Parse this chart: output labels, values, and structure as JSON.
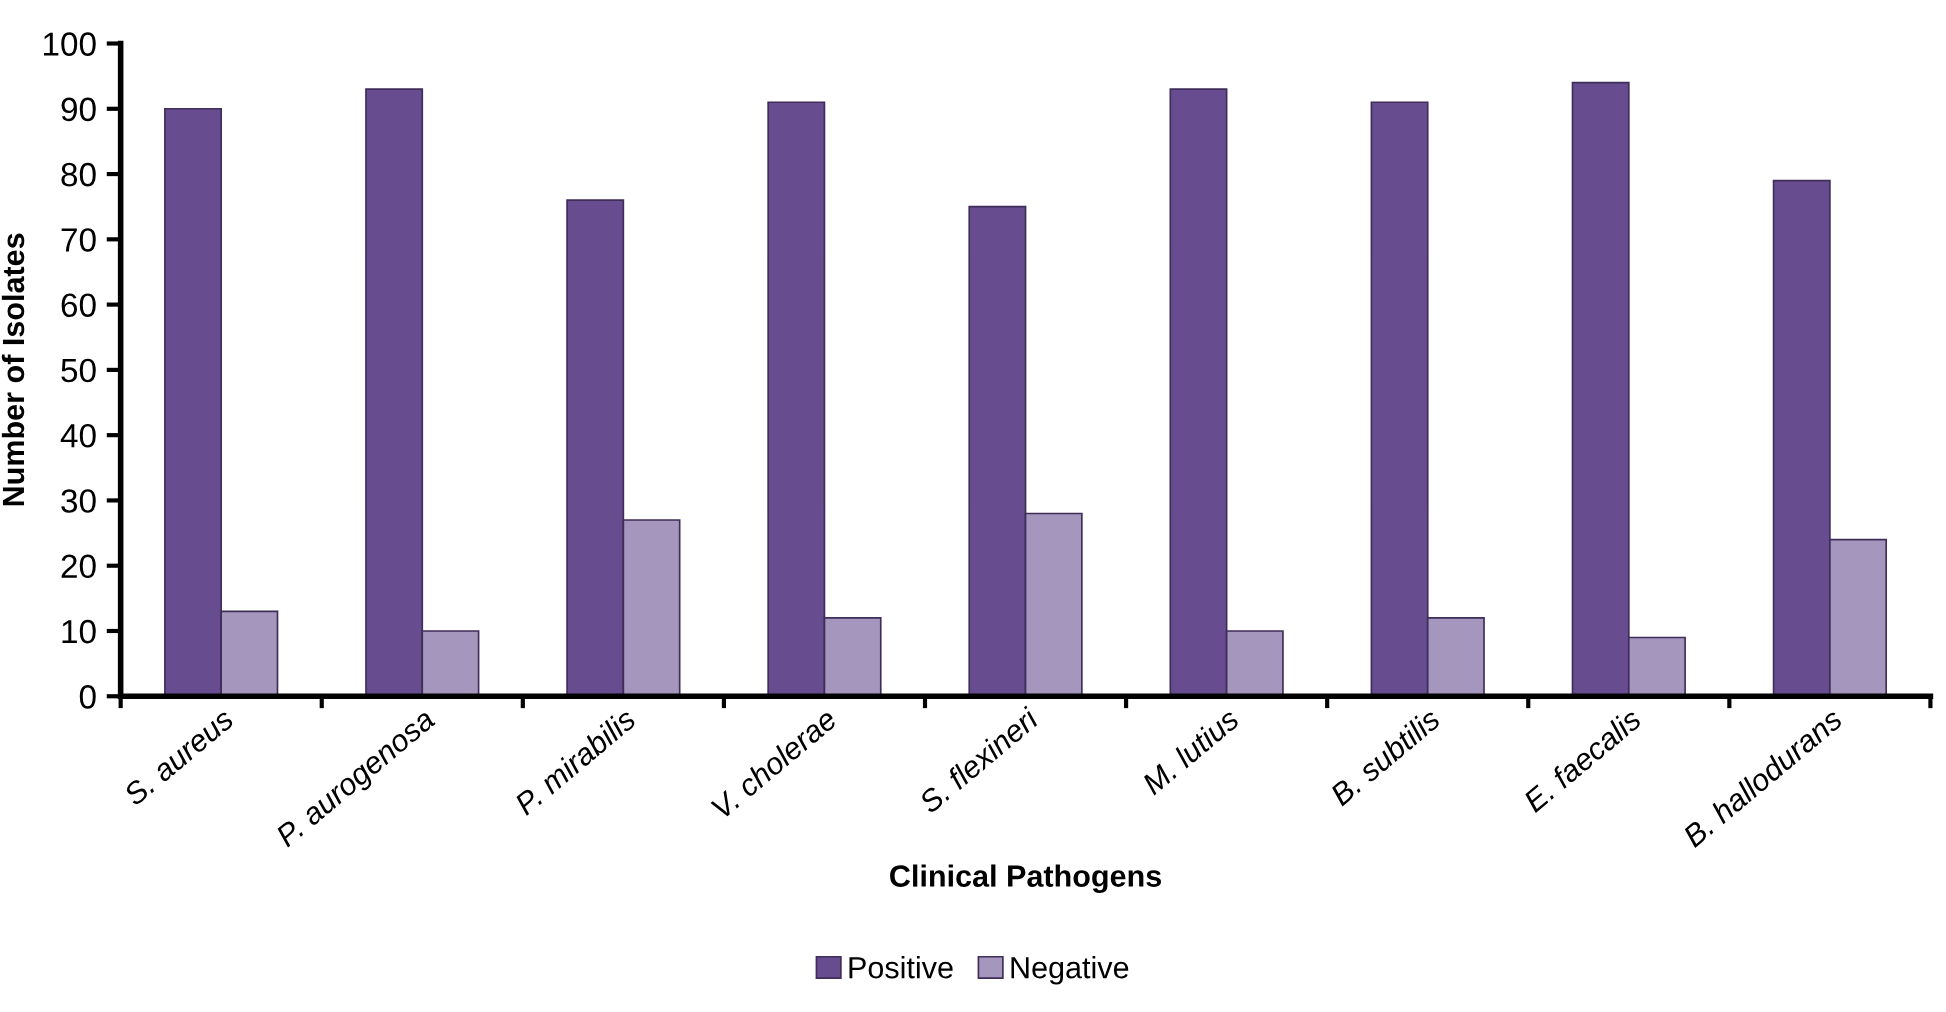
{
  "chart_data": {
    "type": "bar",
    "xlabel": "Clinical Pathogens",
    "ylabel": "Number of Isolates",
    "categories": [
      "S. aureus",
      "P. aurogenosa",
      "P. mirabilis",
      "V. cholerae",
      "S. flexineri",
      "M. lutius",
      "B. subtilis",
      "E. faecalis",
      "B. hallodurans"
    ],
    "series": [
      {
        "name": "Positive",
        "color": "#674c8f",
        "values": [
          90,
          93,
          76,
          91,
          75,
          93,
          91,
          94,
          79
        ]
      },
      {
        "name": "Negative",
        "color": "#a596bd",
        "values": [
          13,
          10,
          27,
          12,
          28,
          10,
          12,
          9,
          24
        ]
      }
    ],
    "ylim": [
      0,
      100
    ],
    "yticks": [
      0,
      10,
      20,
      30,
      40,
      50,
      60,
      70,
      80,
      90,
      100
    ],
    "grid": false,
    "legend": "bottom"
  }
}
